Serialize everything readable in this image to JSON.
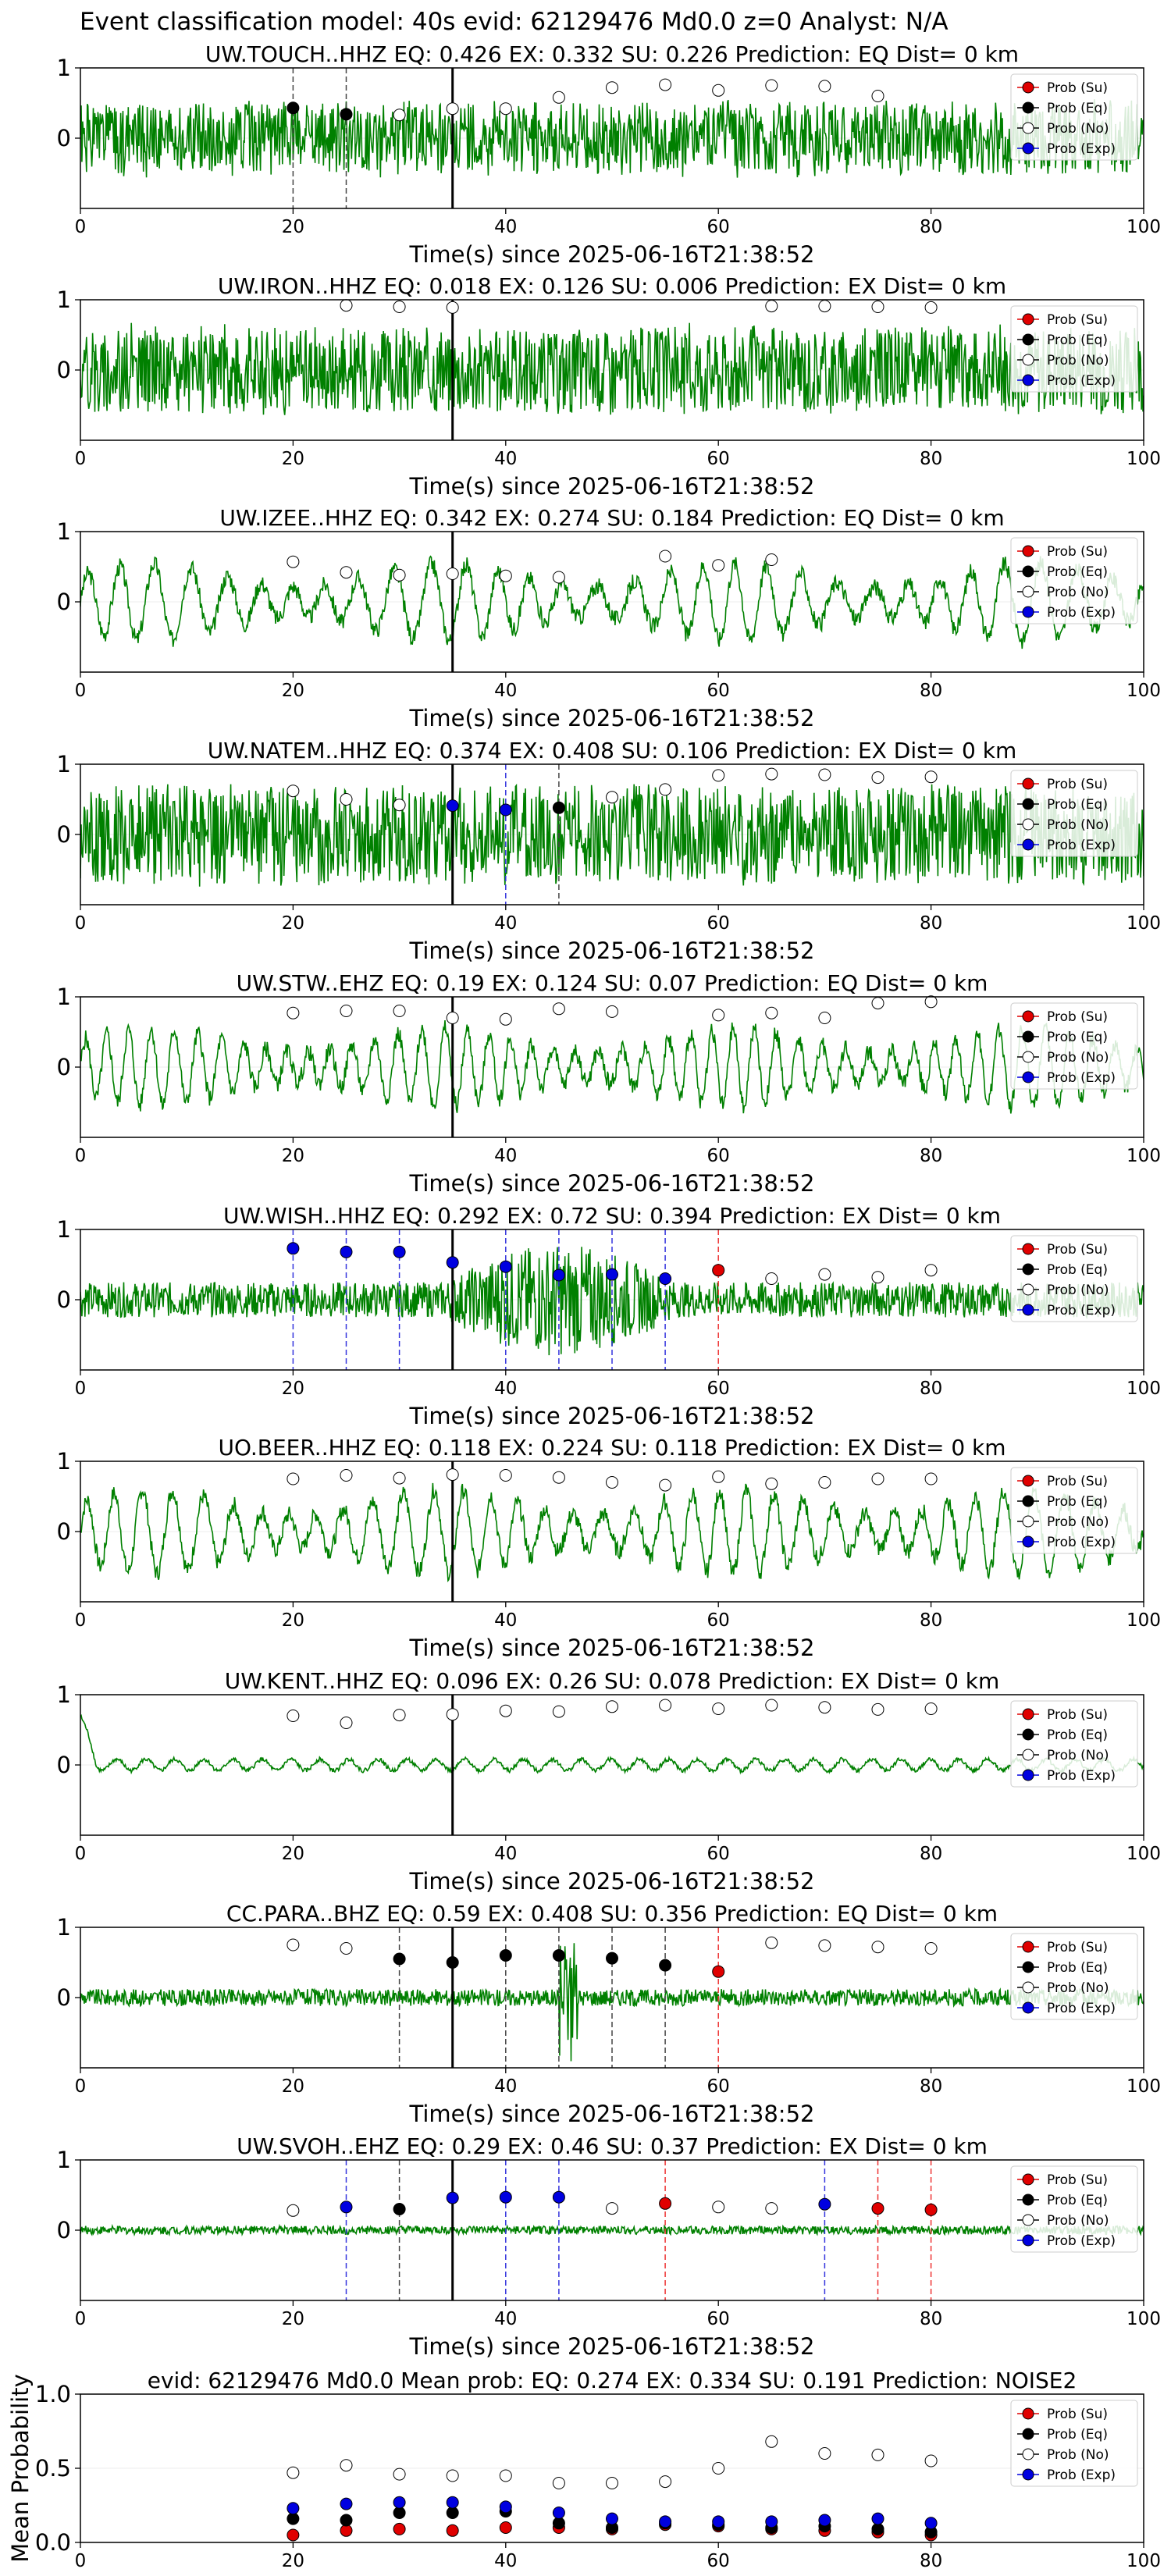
{
  "figure_title": "Event classification model: 40s evid: 62129476 Md0.0 z=0 Analyst: N/A",
  "legend_labels": [
    "Prob (Su)",
    "Prob (Eq)",
    "Prob (No)",
    "Prob (Exp)"
  ],
  "colors": {
    "trace": "#008000",
    "su": "#e00000",
    "eq": "#000000",
    "no": "#ffffff",
    "exp": "#0000e0"
  },
  "chart_data": [
    {
      "type": "line",
      "title": "UW.TOUCH..HHZ   EQ: 0.426  EX: 0.332  SU: 0.226   Prediction: EQ    Dist= 0 km",
      "xlabel": "Time(s) since 2025-06-16T21:38:52",
      "ylabel": "",
      "xlim": [
        0,
        100
      ],
      "ylim": [
        -1,
        1
      ],
      "xticks": [
        0,
        20,
        40,
        60,
        80,
        100
      ],
      "yticks": [
        0,
        1
      ],
      "legend": "top-right",
      "trace": {
        "style": "noise",
        "amp": 0.5,
        "seed": 1
      },
      "pick_s": 35,
      "points": [
        {
          "x": 20,
          "y": 0.43,
          "c": "eq",
          "d": true
        },
        {
          "x": 25,
          "y": 0.34,
          "c": "eq",
          "d": true
        },
        {
          "x": 30,
          "y": 0.33,
          "c": "no"
        },
        {
          "x": 35,
          "y": 0.42,
          "c": "no"
        },
        {
          "x": 40,
          "y": 0.42,
          "c": "no"
        },
        {
          "x": 45,
          "y": 0.58,
          "c": "no"
        },
        {
          "x": 50,
          "y": 0.72,
          "c": "no"
        },
        {
          "x": 55,
          "y": 0.76,
          "c": "no"
        },
        {
          "x": 60,
          "y": 0.68,
          "c": "no"
        },
        {
          "x": 65,
          "y": 0.75,
          "c": "no"
        },
        {
          "x": 70,
          "y": 0.74,
          "c": "no"
        },
        {
          "x": 75,
          "y": 0.6,
          "c": "no"
        }
      ]
    },
    {
      "type": "line",
      "title": "UW.IRON..HHZ   EQ: 0.018  EX: 0.126  SU: 0.006   Prediction: EX    Dist= 0 km",
      "xlabel": "Time(s) since 2025-06-16T21:38:52",
      "ylabel": "",
      "xlim": [
        0,
        100
      ],
      "ylim": [
        -1,
        1
      ],
      "xticks": [
        0,
        20,
        40,
        60,
        80,
        100
      ],
      "yticks": [
        0,
        1
      ],
      "legend": "top-right",
      "trace": {
        "style": "noise",
        "amp": 0.6,
        "seed": 2
      },
      "pick_s": 35,
      "points": [
        {
          "x": 25,
          "y": 0.92,
          "c": "no"
        },
        {
          "x": 30,
          "y": 0.9,
          "c": "no"
        },
        {
          "x": 35,
          "y": 0.89,
          "c": "no"
        },
        {
          "x": 65,
          "y": 0.91,
          "c": "no"
        },
        {
          "x": 70,
          "y": 0.91,
          "c": "no"
        },
        {
          "x": 75,
          "y": 0.9,
          "c": "no"
        },
        {
          "x": 80,
          "y": 0.89,
          "c": "no"
        }
      ]
    },
    {
      "type": "line",
      "title": "UW.IZEE..HHZ   EQ: 0.342  EX: 0.274  SU: 0.184   Prediction: EQ    Dist= 0 km",
      "xlabel": "Time(s) since 2025-06-16T21:38:52",
      "ylabel": "",
      "xlim": [
        0,
        100
      ],
      "ylim": [
        -1,
        1
      ],
      "xticks": [
        0,
        20,
        40,
        60,
        80,
        100
      ],
      "yticks": [
        0,
        1
      ],
      "legend": "top-right",
      "trace": {
        "style": "osc",
        "amp": 0.55,
        "period": 3.2,
        "seed": 3
      },
      "pick_s": 35,
      "points": [
        {
          "x": 20,
          "y": 0.57,
          "c": "no"
        },
        {
          "x": 25,
          "y": 0.42,
          "c": "no"
        },
        {
          "x": 30,
          "y": 0.38,
          "c": "no"
        },
        {
          "x": 35,
          "y": 0.4,
          "c": "no"
        },
        {
          "x": 40,
          "y": 0.37,
          "c": "no"
        },
        {
          "x": 45,
          "y": 0.35,
          "c": "no"
        },
        {
          "x": 55,
          "y": 0.65,
          "c": "no"
        },
        {
          "x": 60,
          "y": 0.52,
          "c": "no"
        },
        {
          "x": 65,
          "y": 0.6,
          "c": "no"
        }
      ]
    },
    {
      "type": "line",
      "title": "UW.NATEM..HHZ   EQ: 0.374  EX: 0.408  SU: 0.106   Prediction: EX    Dist= 0 km",
      "xlabel": "Time(s) since 2025-06-16T21:38:52",
      "ylabel": "",
      "xlim": [
        0,
        100
      ],
      "ylim": [
        -1,
        1
      ],
      "xticks": [
        0,
        20,
        40,
        60,
        80,
        100
      ],
      "yticks": [
        0,
        1
      ],
      "legend": "top-right",
      "trace": {
        "style": "noise",
        "amp": 0.7,
        "seed": 4
      },
      "pick_s": 35,
      "points": [
        {
          "x": 20,
          "y": 0.62,
          "c": "no"
        },
        {
          "x": 25,
          "y": 0.5,
          "c": "no"
        },
        {
          "x": 30,
          "y": 0.42,
          "c": "no"
        },
        {
          "x": 35,
          "y": 0.41,
          "c": "exp"
        },
        {
          "x": 40,
          "y": 0.35,
          "c": "exp",
          "d": true
        },
        {
          "x": 45,
          "y": 0.38,
          "c": "eq",
          "d": true
        },
        {
          "x": 50,
          "y": 0.53,
          "c": "no"
        },
        {
          "x": 55,
          "y": 0.64,
          "c": "no"
        },
        {
          "x": 60,
          "y": 0.84,
          "c": "no"
        },
        {
          "x": 65,
          "y": 0.86,
          "c": "no"
        },
        {
          "x": 70,
          "y": 0.85,
          "c": "no"
        },
        {
          "x": 75,
          "y": 0.81,
          "c": "no"
        },
        {
          "x": 80,
          "y": 0.82,
          "c": "no"
        }
      ]
    },
    {
      "type": "line",
      "title": "UW.STW..EHZ   EQ: 0.19  EX: 0.124  SU: 0.07   Prediction: EQ    Dist= 0 km",
      "xlabel": "Time(s) since 2025-06-16T21:38:52",
      "ylabel": "",
      "xlim": [
        0,
        100
      ],
      "ylim": [
        -1,
        1
      ],
      "xticks": [
        0,
        20,
        40,
        60,
        80,
        100
      ],
      "yticks": [
        0,
        1
      ],
      "legend": "top-right",
      "trace": {
        "style": "osc",
        "amp": 0.55,
        "period": 2.1,
        "seed": 5
      },
      "pick_s": 35,
      "points": [
        {
          "x": 20,
          "y": 0.77,
          "c": "no"
        },
        {
          "x": 25,
          "y": 0.8,
          "c": "no"
        },
        {
          "x": 30,
          "y": 0.8,
          "c": "no"
        },
        {
          "x": 35,
          "y": 0.7,
          "c": "no"
        },
        {
          "x": 40,
          "y": 0.68,
          "c": "no"
        },
        {
          "x": 45,
          "y": 0.83,
          "c": "no"
        },
        {
          "x": 50,
          "y": 0.79,
          "c": "no"
        },
        {
          "x": 60,
          "y": 0.74,
          "c": "no"
        },
        {
          "x": 65,
          "y": 0.77,
          "c": "no"
        },
        {
          "x": 70,
          "y": 0.7,
          "c": "no"
        },
        {
          "x": 75,
          "y": 0.91,
          "c": "no"
        },
        {
          "x": 80,
          "y": 0.93,
          "c": "no"
        }
      ]
    },
    {
      "type": "line",
      "title": "UW.WISH..HHZ   EQ: 0.292  EX: 0.72  SU: 0.394   Prediction: EX    Dist= 0 km",
      "xlabel": "Time(s) since 2025-06-16T21:38:52",
      "ylabel": "",
      "xlim": [
        0,
        100
      ],
      "ylim": [
        -1,
        1
      ],
      "xticks": [
        0,
        20,
        40,
        60,
        80,
        100
      ],
      "yticks": [
        0,
        1
      ],
      "legend": "top-right",
      "trace": {
        "style": "burst",
        "amp": 0.25,
        "seed": 6
      },
      "pick_s": 35,
      "points": [
        {
          "x": 20,
          "y": 0.73,
          "c": "exp",
          "d": true
        },
        {
          "x": 25,
          "y": 0.68,
          "c": "exp",
          "d": true
        },
        {
          "x": 30,
          "y": 0.68,
          "c": "exp",
          "d": true
        },
        {
          "x": 35,
          "y": 0.53,
          "c": "exp"
        },
        {
          "x": 40,
          "y": 0.47,
          "c": "exp",
          "d": true
        },
        {
          "x": 45,
          "y": 0.35,
          "c": "exp",
          "d": true
        },
        {
          "x": 50,
          "y": 0.36,
          "c": "exp",
          "d": true
        },
        {
          "x": 55,
          "y": 0.3,
          "c": "exp",
          "d": true
        },
        {
          "x": 60,
          "y": 0.42,
          "c": "su",
          "d": true
        },
        {
          "x": 65,
          "y": 0.3,
          "c": "no"
        },
        {
          "x": 70,
          "y": 0.36,
          "c": "no"
        },
        {
          "x": 75,
          "y": 0.32,
          "c": "no"
        },
        {
          "x": 80,
          "y": 0.42,
          "c": "no"
        }
      ]
    },
    {
      "type": "line",
      "title": "UO.BEER..HHZ   EQ: 0.118  EX: 0.224  SU: 0.118   Prediction: EX    Dist= 0 km",
      "xlabel": "Time(s) since 2025-06-16T21:38:52",
      "ylabel": "",
      "xlim": [
        0,
        100
      ],
      "ylim": [
        -1,
        1
      ],
      "xticks": [
        0,
        20,
        40,
        60,
        80,
        100
      ],
      "yticks": [
        0,
        1
      ],
      "legend": "top-right",
      "trace": {
        "style": "osc",
        "amp": 0.6,
        "period": 2.7,
        "seed": 7
      },
      "pick_s": 35,
      "points": [
        {
          "x": 20,
          "y": 0.75,
          "c": "no"
        },
        {
          "x": 25,
          "y": 0.8,
          "c": "no"
        },
        {
          "x": 30,
          "y": 0.76,
          "c": "no"
        },
        {
          "x": 35,
          "y": 0.81,
          "c": "no"
        },
        {
          "x": 40,
          "y": 0.8,
          "c": "no"
        },
        {
          "x": 45,
          "y": 0.77,
          "c": "no"
        },
        {
          "x": 50,
          "y": 0.7,
          "c": "no"
        },
        {
          "x": 55,
          "y": 0.66,
          "c": "no"
        },
        {
          "x": 60,
          "y": 0.78,
          "c": "no"
        },
        {
          "x": 65,
          "y": 0.68,
          "c": "no"
        },
        {
          "x": 70,
          "y": 0.7,
          "c": "no"
        },
        {
          "x": 75,
          "y": 0.75,
          "c": "no"
        },
        {
          "x": 80,
          "y": 0.75,
          "c": "no"
        }
      ]
    },
    {
      "type": "line",
      "title": "UW.KENT..HHZ   EQ: 0.096  EX: 0.26  SU: 0.078   Prediction: EX    Dist= 0 km",
      "xlabel": "Time(s) since 2025-06-16T21:38:52",
      "ylabel": "",
      "xlim": [
        0,
        100
      ],
      "ylim": [
        -1,
        1
      ],
      "xticks": [
        0,
        20,
        40,
        60,
        80,
        100
      ],
      "yticks": [
        0,
        1
      ],
      "legend": "top-right",
      "trace": {
        "style": "quiet",
        "amp": 0.08,
        "seed": 8
      },
      "pick_s": 35,
      "points": [
        {
          "x": 20,
          "y": 0.7,
          "c": "no"
        },
        {
          "x": 25,
          "y": 0.6,
          "c": "no"
        },
        {
          "x": 30,
          "y": 0.71,
          "c": "no"
        },
        {
          "x": 35,
          "y": 0.72,
          "c": "no"
        },
        {
          "x": 40,
          "y": 0.77,
          "c": "no"
        },
        {
          "x": 45,
          "y": 0.76,
          "c": "no"
        },
        {
          "x": 50,
          "y": 0.83,
          "c": "no"
        },
        {
          "x": 55,
          "y": 0.85,
          "c": "no"
        },
        {
          "x": 60,
          "y": 0.8,
          "c": "no"
        },
        {
          "x": 65,
          "y": 0.85,
          "c": "no"
        },
        {
          "x": 70,
          "y": 0.82,
          "c": "no"
        },
        {
          "x": 75,
          "y": 0.79,
          "c": "no"
        },
        {
          "x": 80,
          "y": 0.8,
          "c": "no"
        }
      ]
    },
    {
      "type": "line",
      "title": "CC.PARA..BHZ   EQ: 0.59  EX: 0.408  SU: 0.356   Prediction: EQ    Dist= 0 km",
      "xlabel": "Time(s) since 2025-06-16T21:38:52",
      "ylabel": "",
      "xlim": [
        0,
        100
      ],
      "ylim": [
        -1,
        1
      ],
      "xticks": [
        0,
        20,
        40,
        60,
        80,
        100
      ],
      "yticks": [
        0,
        1
      ],
      "legend": "top-right",
      "trace": {
        "style": "spike",
        "amp": 0.12,
        "seed": 9
      },
      "pick_s": 35,
      "points": [
        {
          "x": 20,
          "y": 0.75,
          "c": "no"
        },
        {
          "x": 25,
          "y": 0.7,
          "c": "no"
        },
        {
          "x": 30,
          "y": 0.55,
          "c": "eq",
          "d": true
        },
        {
          "x": 35,
          "y": 0.5,
          "c": "eq"
        },
        {
          "x": 40,
          "y": 0.6,
          "c": "eq",
          "d": true
        },
        {
          "x": 45,
          "y": 0.6,
          "c": "eq",
          "d": true
        },
        {
          "x": 50,
          "y": 0.56,
          "c": "eq",
          "d": true
        },
        {
          "x": 55,
          "y": 0.46,
          "c": "eq",
          "d": true
        },
        {
          "x": 60,
          "y": 0.37,
          "c": "su",
          "d": true
        },
        {
          "x": 65,
          "y": 0.78,
          "c": "no"
        },
        {
          "x": 70,
          "y": 0.74,
          "c": "no"
        },
        {
          "x": 75,
          "y": 0.72,
          "c": "no"
        },
        {
          "x": 80,
          "y": 0.7,
          "c": "no"
        }
      ]
    },
    {
      "type": "line",
      "title": "UW.SVOH..EHZ   EQ: 0.29  EX: 0.46  SU: 0.37   Prediction: EX    Dist= 0 km",
      "xlabel": "Time(s) since 2025-06-16T21:38:52",
      "ylabel": "",
      "xlim": [
        0,
        100
      ],
      "ylim": [
        -1,
        1
      ],
      "xticks": [
        0,
        20,
        40,
        60,
        80,
        100
      ],
      "yticks": [
        0,
        1
      ],
      "legend": "top-right",
      "trace": {
        "style": "thin",
        "amp": 0.06,
        "seed": 10
      },
      "pick_s": 35,
      "points": [
        {
          "x": 20,
          "y": 0.28,
          "c": "no"
        },
        {
          "x": 25,
          "y": 0.33,
          "c": "exp",
          "d": true
        },
        {
          "x": 30,
          "y": 0.3,
          "c": "eq",
          "d": true
        },
        {
          "x": 35,
          "y": 0.46,
          "c": "exp"
        },
        {
          "x": 40,
          "y": 0.47,
          "c": "exp",
          "d": true
        },
        {
          "x": 45,
          "y": 0.47,
          "c": "exp",
          "d": true
        },
        {
          "x": 50,
          "y": 0.31,
          "c": "no"
        },
        {
          "x": 55,
          "y": 0.38,
          "c": "su",
          "d": true
        },
        {
          "x": 60,
          "y": 0.33,
          "c": "no"
        },
        {
          "x": 65,
          "y": 0.31,
          "c": "no"
        },
        {
          "x": 70,
          "y": 0.37,
          "c": "exp",
          "d": true
        },
        {
          "x": 75,
          "y": 0.31,
          "c": "su",
          "d": true
        },
        {
          "x": 80,
          "y": 0.29,
          "c": "su",
          "d": true
        }
      ]
    },
    {
      "type": "scatter",
      "title": "evid: 62129476  Md0.0   Mean prob:   EQ: 0.274  EX: 0.334  SU: 0.191   Prediction: NOISE2",
      "xlabel": "",
      "ylabel": "Mean Probability",
      "xlim": [
        0,
        100
      ],
      "ylim": [
        0,
        1
      ],
      "xticks": [
        0,
        20,
        40,
        60,
        80,
        100
      ],
      "yticks": [
        0.0,
        0.5,
        1.0
      ],
      "legend": "top-right",
      "series": [
        {
          "name": "Prob (Su)",
          "c": "su",
          "x": [
            20,
            25,
            30,
            35,
            40,
            45,
            50,
            55,
            60,
            65,
            70,
            75,
            80
          ],
          "y": [
            0.05,
            0.08,
            0.09,
            0.08,
            0.1,
            0.1,
            0.09,
            0.12,
            0.11,
            0.09,
            0.08,
            0.07,
            0.05
          ]
        },
        {
          "name": "Prob (Eq)",
          "c": "eq",
          "x": [
            20,
            25,
            30,
            35,
            40,
            45,
            50,
            55,
            60,
            65,
            70,
            75,
            80
          ],
          "y": [
            0.16,
            0.15,
            0.2,
            0.2,
            0.21,
            0.13,
            0.1,
            0.13,
            0.12,
            0.1,
            0.11,
            0.09,
            0.07
          ]
        },
        {
          "name": "Prob (No)",
          "c": "no",
          "x": [
            20,
            25,
            30,
            35,
            40,
            45,
            50,
            55,
            60,
            65,
            70,
            75,
            80
          ],
          "y": [
            0.47,
            0.52,
            0.46,
            0.45,
            0.45,
            0.4,
            0.4,
            0.41,
            0.5,
            0.68,
            0.6,
            0.59,
            0.55
          ]
        },
        {
          "name": "Prob (Exp)",
          "c": "exp",
          "x": [
            20,
            25,
            30,
            35,
            40,
            45,
            50,
            55,
            60,
            65,
            70,
            75,
            80
          ],
          "y": [
            0.23,
            0.26,
            0.27,
            0.27,
            0.24,
            0.2,
            0.16,
            0.14,
            0.14,
            0.14,
            0.15,
            0.16,
            0.13
          ]
        }
      ]
    }
  ]
}
